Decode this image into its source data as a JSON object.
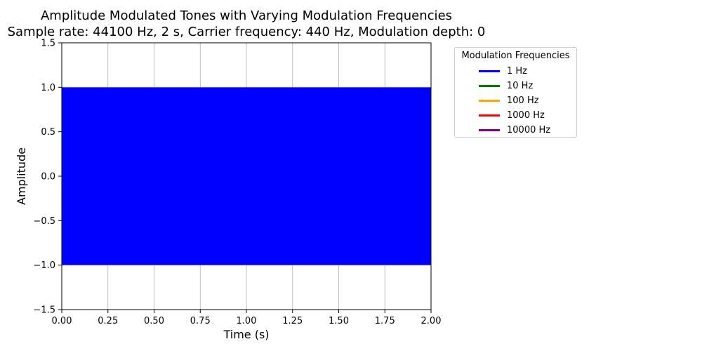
{
  "chart_data": {
    "type": "line",
    "title": "Amplitude Modulated Tones with Varying Modulation Frequencies",
    "subtitle": "Sample rate: 44100 Hz, 2 s, Carrier frequency: 440 Hz, Modulation depth: 0",
    "xlabel": "Time (s)",
    "ylabel": "Amplitude",
    "xlim": [
      0,
      2
    ],
    "ylim": [
      -1.5,
      1.5
    ],
    "x_ticks": [
      0,
      0.25,
      0.5,
      0.75,
      1.0,
      1.25,
      1.5,
      1.75,
      2.0
    ],
    "x_tick_labels": [
      "0.00",
      "0.25",
      "0.50",
      "0.75",
      "1.00",
      "1.25",
      "1.50",
      "1.75",
      "2.00"
    ],
    "y_ticks": [
      -1.5,
      -1.0,
      -0.5,
      0.0,
      0.5,
      1.0,
      1.5
    ],
    "y_tick_labels": [
      "−1.5",
      "−1.0",
      "−0.5",
      "0.0",
      "0.5",
      "1.0",
      "1.5"
    ],
    "grid": "vertical",
    "legend_title": "Modulation Frequencies",
    "legend_position": "outside-right",
    "series": [
      {
        "name": "1 Hz",
        "color": "#0000ff",
        "carrier_hz": 440,
        "modulation_hz": 1,
        "depth": 0,
        "amplitude": 1.0,
        "visible_fill": true
      },
      {
        "name": "10 Hz",
        "color": "#008000",
        "carrier_hz": 440,
        "modulation_hz": 10,
        "depth": 0,
        "amplitude": 1.0,
        "visible_fill": false
      },
      {
        "name": "100 Hz",
        "color": "#ffa500",
        "carrier_hz": 440,
        "modulation_hz": 100,
        "depth": 0,
        "amplitude": 1.0,
        "visible_fill": false
      },
      {
        "name": "1000 Hz",
        "color": "#ff0000",
        "carrier_hz": 440,
        "modulation_hz": 1000,
        "depth": 0,
        "amplitude": 1.0,
        "visible_fill": false
      },
      {
        "name": "10000 Hz",
        "color": "#800080",
        "carrier_hz": 440,
        "modulation_hz": 10000,
        "depth": 0,
        "amplitude": 1.0,
        "visible_fill": false
      }
    ]
  }
}
